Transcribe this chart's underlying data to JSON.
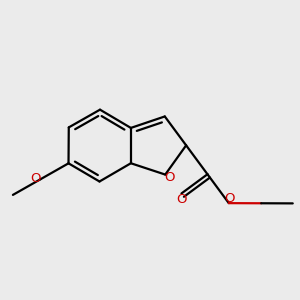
{
  "background_color": "#ebebeb",
  "bond_color": "#000000",
  "oxygen_color": "#cc0000",
  "bond_width": 1.6,
  "figsize": [
    3.0,
    3.0
  ],
  "dpi": 100,
  "label_fontsize": 9.5,
  "atoms": {
    "C3a": [
      0.435,
      0.575
    ],
    "C7a": [
      0.435,
      0.455
    ],
    "bl": 0.122
  }
}
